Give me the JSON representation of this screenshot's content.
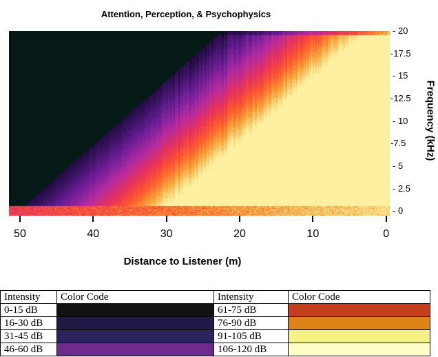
{
  "chart_data": {
    "type": "heatmap",
    "title": "Attention, Perception, & Psychophysics",
    "xlabel": "Distance to Listener (m)",
    "ylabel": "Frequency (kHz)",
    "x_ticks": [
      "50",
      "40",
      "30",
      "20",
      "10",
      "0"
    ],
    "x_tick_values": [
      50,
      40,
      30,
      20,
      10,
      0
    ],
    "xlim": [
      51.5,
      -0.5
    ],
    "y_ticks": [
      "- 20",
      "-17.5",
      "- 15",
      "-12.5",
      "- 10",
      "-7.5",
      "- 5",
      "- 2.5",
      "- 0"
    ],
    "y_tick_values": [
      20,
      17.5,
      15,
      12.5,
      10,
      7.5,
      5,
      2.5,
      0
    ],
    "ylim": [
      -0.5,
      20
    ],
    "colormap": [
      "#000000",
      "#2a0f4e",
      "#6a1e96",
      "#b32ba3",
      "#e8325a",
      "#ff5a2c",
      "#f9a63a",
      "#fdf0a0"
    ],
    "intensity_legend": {
      "headers": [
        "Intensity",
        "Color Code",
        "Intensity",
        "Color Code"
      ],
      "rows": [
        {
          "left_label": "0-15 dB",
          "left_color": "#121212",
          "right_label": "61-75 dB",
          "right_color": "#c53e1f"
        },
        {
          "left_label": "16-30 dB",
          "left_color": "#221a45",
          "right_label": "76-90 dB",
          "right_color": "#df8318"
        },
        {
          "left_label": "31-45 dB",
          "left_color": "#2c235e",
          "right_label": "91-105 dB",
          "right_color": "#f6f185"
        },
        {
          "left_label": "46-60 dB",
          "left_color": "#6f2a8e",
          "right_label": "106-120 dB",
          "right_color": "#ffffc6"
        }
      ]
    }
  }
}
